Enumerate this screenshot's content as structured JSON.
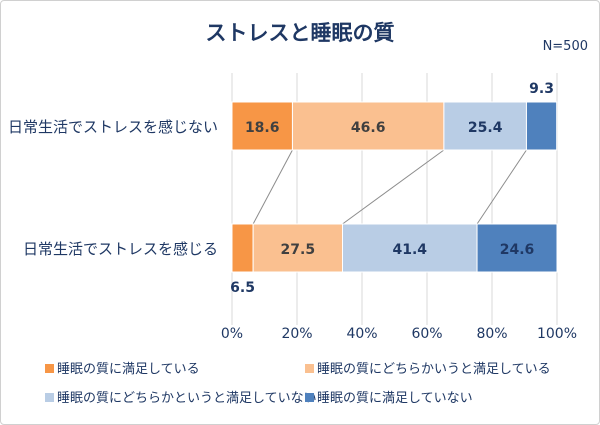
{
  "chart_data": {
    "type": "bar",
    "stacked": true,
    "orientation": "horizontal",
    "title": "ストレスと睡眠の質",
    "note": "N=500",
    "categories": [
      "日常生活でストレスを感じない",
      "日常生活でストレスを感じる"
    ],
    "series": [
      {
        "name": "睡眠の質に満足している",
        "color": "#F79646",
        "values": [
          18.6,
          6.5
        ]
      },
      {
        "name": "睡眠の質にどちらかいうと満足している",
        "color": "#FAC090",
        "values": [
          46.6,
          27.5
        ]
      },
      {
        "name": "睡眠の質にどちらかというと満足していない",
        "color": "#B9CDE5",
        "values": [
          25.4,
          41.4
        ]
      },
      {
        "name": "睡眠の質に満足していない",
        "color": "#4F81BD",
        "values": [
          9.3,
          24.6
        ]
      }
    ],
    "data_labels": [
      [
        "18.6",
        "46.6",
        "25.4",
        "9.3"
      ],
      [
        "6.5",
        "27.5",
        "41.4",
        "24.6"
      ]
    ],
    "xlim": [
      0,
      100
    ],
    "xticks": [
      "0%",
      "20%",
      "40%",
      "60%",
      "80%",
      "100%"
    ],
    "grid": true,
    "series_lines": true,
    "legend": "bottom",
    "title_color": "#1F3864",
    "label_color": "#1F3864"
  }
}
